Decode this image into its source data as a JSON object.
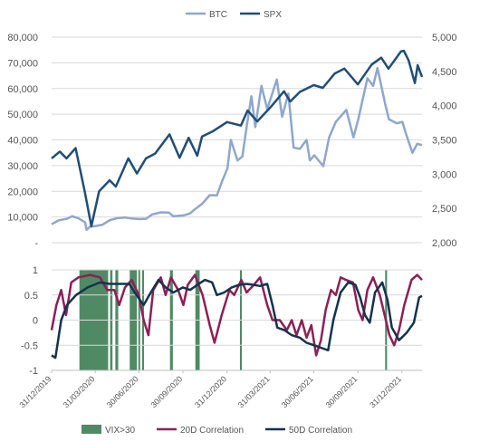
{
  "colors": {
    "btc": "#8ea7cf",
    "spx": "#1f4e79",
    "vix": "#4f8a64",
    "corr20": "#8e1f57",
    "corr50": "#13334f",
    "grid": "#d9d9d9",
    "text": "#555555"
  },
  "legend_top": [
    {
      "label": "BTC",
      "color_key": "btc"
    },
    {
      "label": "SPX",
      "color_key": "spx"
    }
  ],
  "legend_bottom": [
    {
      "label": "VIX>30",
      "color_key": "vix",
      "shape": "box"
    },
    {
      "label": "20D Correlation",
      "color_key": "corr20",
      "shape": "line"
    },
    {
      "label": "50D Correlation",
      "color_key": "corr50",
      "shape": "line"
    }
  ],
  "chart_data": [
    {
      "type": "line",
      "title": "",
      "x_range": [
        "2019-12-31",
        "2022-02-11"
      ],
      "y_left": {
        "label": "",
        "ylim": [
          0,
          80000
        ],
        "ticks": [
          "-",
          "10,000",
          "20,000",
          "30,000",
          "40,000",
          "50,000",
          "60,000",
          "70,000",
          "80,000"
        ]
      },
      "y_right": {
        "label": "",
        "ylim": [
          2000,
          5000
        ],
        "ticks": [
          "2,000",
          "2,500",
          "3,000",
          "3,500",
          "4,000",
          "4,500",
          "5,000"
        ]
      },
      "grid": "horizontal",
      "legend": "top-center",
      "series": [
        {
          "name": "BTC",
          "axis": "left",
          "points": [
            [
              "2019-12-31",
              7200
            ],
            [
              "2020-01-15",
              8700
            ],
            [
              "2020-02-01",
              9300
            ],
            [
              "2020-02-12",
              10300
            ],
            [
              "2020-02-25",
              9500
            ],
            [
              "2020-03-10",
              7900
            ],
            [
              "2020-03-13",
              5000
            ],
            [
              "2020-03-20",
              6200
            ],
            [
              "2020-04-01",
              6500
            ],
            [
              "2020-04-15",
              7000
            ],
            [
              "2020-05-01",
              8800
            ],
            [
              "2020-05-15",
              9500
            ],
            [
              "2020-06-01",
              9800
            ],
            [
              "2020-06-15",
              9400
            ],
            [
              "2020-07-01",
              9200
            ],
            [
              "2020-07-15",
              9300
            ],
            [
              "2020-07-28",
              11000
            ],
            [
              "2020-08-15",
              11800
            ],
            [
              "2020-09-01",
              11700
            ],
            [
              "2020-09-10",
              10300
            ],
            [
              "2020-10-01",
              10600
            ],
            [
              "2020-10-15",
              11400
            ],
            [
              "2020-10-25",
              13000
            ],
            [
              "2020-11-10",
              15300
            ],
            [
              "2020-11-25",
              18500
            ],
            [
              "2020-12-10",
              18400
            ],
            [
              "2020-12-20",
              23500
            ],
            [
              "2021-01-01",
              29000
            ],
            [
              "2021-01-08",
              40000
            ],
            [
              "2021-01-22",
              32000
            ],
            [
              "2021-02-01",
              33500
            ],
            [
              "2021-02-10",
              45000
            ],
            [
              "2021-02-20",
              57000
            ],
            [
              "2021-02-28",
              45000
            ],
            [
              "2021-03-13",
              61000
            ],
            [
              "2021-03-25",
              52000
            ],
            [
              "2021-04-14",
              63500
            ],
            [
              "2021-04-25",
              49000
            ],
            [
              "2021-05-08",
              58000
            ],
            [
              "2021-05-19",
              37000
            ],
            [
              "2021-06-01",
              36500
            ],
            [
              "2021-06-15",
              40000
            ],
            [
              "2021-06-22",
              32000
            ],
            [
              "2021-07-01",
              34000
            ],
            [
              "2021-07-20",
              29800
            ],
            [
              "2021-08-01",
              41000
            ],
            [
              "2021-08-15",
              47000
            ],
            [
              "2021-09-06",
              51700
            ],
            [
              "2021-09-21",
              41000
            ],
            [
              "2021-10-01",
              48000
            ],
            [
              "2021-10-20",
              64000
            ],
            [
              "2021-11-01",
              61000
            ],
            [
              "2021-11-10",
              68000
            ],
            [
              "2021-11-26",
              54000
            ],
            [
              "2021-12-04",
              48000
            ],
            [
              "2021-12-20",
              46500
            ],
            [
              "2022-01-01",
              47000
            ],
            [
              "2022-01-10",
              41500
            ],
            [
              "2022-01-22",
              35000
            ],
            [
              "2022-02-01",
              38500
            ],
            [
              "2022-02-11",
              38000
            ]
          ]
        },
        {
          "name": "SPX",
          "axis": "right",
          "points": [
            [
              "2019-12-31",
              3230
            ],
            [
              "2020-01-17",
              3330
            ],
            [
              "2020-01-31",
              3230
            ],
            [
              "2020-02-19",
              3380
            ],
            [
              "2020-03-09",
              2750
            ],
            [
              "2020-03-23",
              2240
            ],
            [
              "2020-04-08",
              2750
            ],
            [
              "2020-04-30",
              2910
            ],
            [
              "2020-05-13",
              2820
            ],
            [
              "2020-06-08",
              3230
            ],
            [
              "2020-06-26",
              3010
            ],
            [
              "2020-07-15",
              3230
            ],
            [
              "2020-08-03",
              3300
            ],
            [
              "2020-09-02",
              3580
            ],
            [
              "2020-09-23",
              3240
            ],
            [
              "2020-10-12",
              3530
            ],
            [
              "2020-10-30",
              3270
            ],
            [
              "2020-11-09",
              3550
            ],
            [
              "2020-11-30",
              3620
            ],
            [
              "2020-12-31",
              3760
            ],
            [
              "2021-01-29",
              3710
            ],
            [
              "2021-02-12",
              3930
            ],
            [
              "2021-03-04",
              3770
            ],
            [
              "2021-03-31",
              3970
            ],
            [
              "2021-04-29",
              4210
            ],
            [
              "2021-05-12",
              4060
            ],
            [
              "2021-06-01",
              4200
            ],
            [
              "2021-06-30",
              4300
            ],
            [
              "2021-07-19",
              4260
            ],
            [
              "2021-08-13",
              4470
            ],
            [
              "2021-09-02",
              4540
            ],
            [
              "2021-09-30",
              4310
            ],
            [
              "2021-10-29",
              4600
            ],
            [
              "2021-11-18",
              4700
            ],
            [
              "2021-11-30",
              4570
            ],
            [
              "2021-12-03",
              4540
            ],
            [
              "2021-12-29",
              4790
            ],
            [
              "2022-01-04",
              4800
            ],
            [
              "2022-01-14",
              4660
            ],
            [
              "2022-01-27",
              4330
            ],
            [
              "2022-02-02",
              4590
            ],
            [
              "2022-02-11",
              4420
            ]
          ]
        }
      ]
    },
    {
      "type": "line",
      "title": "",
      "x_range": [
        "2019-12-31",
        "2022-02-11"
      ],
      "x_ticks": [
        "31/12/2019",
        "31/03/2020",
        "30/06/2020",
        "30/09/2020",
        "31/12/2020",
        "31/03/2021",
        "30/06/2021",
        "30/09/2021",
        "31/12/2021"
      ],
      "y_left": {
        "label": "",
        "ylim": [
          -1,
          1
        ],
        "ticks": [
          "-1",
          "-0.5",
          "0",
          "0.5",
          "1"
        ]
      },
      "legend": "bottom",
      "vix_periods": [
        [
          "2020-02-27",
          "2020-04-27"
        ],
        [
          "2020-05-01",
          "2020-05-06"
        ],
        [
          "2020-05-12",
          "2020-05-18"
        ],
        [
          "2020-06-11",
          "2020-06-26"
        ],
        [
          "2020-06-29",
          "2020-07-01"
        ],
        [
          "2020-07-07",
          "2020-07-09"
        ],
        [
          "2020-09-03",
          "2020-09-09"
        ],
        [
          "2020-10-26",
          "2020-11-04"
        ],
        [
          "2021-01-27",
          "2021-01-31"
        ],
        [
          "2021-11-26",
          "2021-11-30"
        ]
      ],
      "series": [
        {
          "name": "20D Correlation",
          "points": [
            [
              "2019-12-31",
              -0.2
            ],
            [
              "2020-01-10",
              0.3
            ],
            [
              "2020-01-20",
              0.6
            ],
            [
              "2020-01-30",
              0.1
            ],
            [
              "2020-02-10",
              0.75
            ],
            [
              "2020-02-25",
              0.85
            ],
            [
              "2020-03-20",
              0.9
            ],
            [
              "2020-04-10",
              0.85
            ],
            [
              "2020-04-25",
              0.6
            ],
            [
              "2020-05-10",
              0.6
            ],
            [
              "2020-05-20",
              0.3
            ],
            [
              "2020-06-01",
              0.65
            ],
            [
              "2020-06-15",
              0.8
            ],
            [
              "2020-06-30",
              0.5
            ],
            [
              "2020-07-10",
              0.0
            ],
            [
              "2020-07-20",
              -0.3
            ],
            [
              "2020-07-30",
              0.6
            ],
            [
              "2020-08-15",
              0.85
            ],
            [
              "2020-08-25",
              0.5
            ],
            [
              "2020-09-05",
              0.85
            ],
            [
              "2020-09-20",
              0.6
            ],
            [
              "2020-10-01",
              0.3
            ],
            [
              "2020-10-10",
              0.7
            ],
            [
              "2020-10-25",
              0.9
            ],
            [
              "2020-11-10",
              0.5
            ],
            [
              "2020-11-25",
              -0.1
            ],
            [
              "2020-12-05",
              -0.45
            ],
            [
              "2020-12-20",
              0.1
            ],
            [
              "2021-01-05",
              0.6
            ],
            [
              "2021-01-15",
              0.5
            ],
            [
              "2021-01-30",
              0.8
            ],
            [
              "2021-02-10",
              0.55
            ],
            [
              "2021-02-25",
              0.7
            ],
            [
              "2021-03-10",
              0.85
            ],
            [
              "2021-03-25",
              0.3
            ],
            [
              "2021-04-05",
              0.0
            ],
            [
              "2021-04-20",
              0.0
            ],
            [
              "2021-05-05",
              -0.2
            ],
            [
              "2021-05-15",
              0.0
            ],
            [
              "2021-05-25",
              -0.3
            ],
            [
              "2021-06-05",
              0.0
            ],
            [
              "2021-06-15",
              -0.35
            ],
            [
              "2021-06-25",
              -0.1
            ],
            [
              "2021-07-05",
              -0.7
            ],
            [
              "2021-07-15",
              -0.4
            ],
            [
              "2021-07-25",
              0.2
            ],
            [
              "2021-08-05",
              0.6
            ],
            [
              "2021-08-15",
              0.5
            ],
            [
              "2021-08-25",
              0.85
            ],
            [
              "2021-09-05",
              0.8
            ],
            [
              "2021-09-20",
              0.75
            ],
            [
              "2021-10-01",
              0.2
            ],
            [
              "2021-10-10",
              0.0
            ],
            [
              "2021-10-20",
              0.6
            ],
            [
              "2021-11-01",
              0.85
            ],
            [
              "2021-11-15",
              0.5
            ],
            [
              "2021-11-25",
              0.1
            ],
            [
              "2021-12-05",
              -0.3
            ],
            [
              "2021-12-15",
              -0.5
            ],
            [
              "2021-12-25",
              -0.2
            ],
            [
              "2022-01-05",
              0.3
            ],
            [
              "2022-01-20",
              0.8
            ],
            [
              "2022-02-01",
              0.9
            ],
            [
              "2022-02-11",
              0.8
            ]
          ]
        },
        {
          "name": "50D Correlation",
          "points": [
            [
              "2019-12-31",
              -0.7
            ],
            [
              "2020-01-08",
              -0.75
            ],
            [
              "2020-01-20",
              0.0
            ],
            [
              "2020-02-01",
              0.3
            ],
            [
              "2020-02-20",
              0.5
            ],
            [
              "2020-03-15",
              0.65
            ],
            [
              "2020-04-10",
              0.75
            ],
            [
              "2020-04-30",
              0.72
            ],
            [
              "2020-05-20",
              0.72
            ],
            [
              "2020-06-10",
              0.72
            ],
            [
              "2020-06-25",
              0.5
            ],
            [
              "2020-07-10",
              0.3
            ],
            [
              "2020-07-25",
              0.55
            ],
            [
              "2020-08-10",
              0.8
            ],
            [
              "2020-08-25",
              0.65
            ],
            [
              "2020-09-10",
              0.55
            ],
            [
              "2020-09-30",
              0.65
            ],
            [
              "2020-10-15",
              0.6
            ],
            [
              "2020-10-30",
              0.7
            ],
            [
              "2020-11-15",
              0.8
            ],
            [
              "2020-11-30",
              0.75
            ],
            [
              "2020-12-10",
              0.5
            ],
            [
              "2020-12-25",
              0.55
            ],
            [
              "2021-01-10",
              0.65
            ],
            [
              "2021-01-25",
              0.7
            ],
            [
              "2021-02-10",
              0.72
            ],
            [
              "2021-02-25",
              0.7
            ],
            [
              "2021-03-10",
              0.68
            ],
            [
              "2021-03-25",
              0.72
            ],
            [
              "2021-04-05",
              0.3
            ],
            [
              "2021-04-15",
              -0.15
            ],
            [
              "2021-04-30",
              -0.2
            ],
            [
              "2021-05-15",
              -0.3
            ],
            [
              "2021-06-01",
              -0.35
            ],
            [
              "2021-06-15",
              -0.45
            ],
            [
              "2021-07-01",
              -0.5
            ],
            [
              "2021-07-15",
              -0.55
            ],
            [
              "2021-07-30",
              -0.6
            ],
            [
              "2021-08-10",
              0.0
            ],
            [
              "2021-08-25",
              0.55
            ],
            [
              "2021-09-10",
              0.75
            ],
            [
              "2021-09-25",
              0.7
            ],
            [
              "2021-10-05",
              0.45
            ],
            [
              "2021-10-15",
              0.1
            ],
            [
              "2021-10-25",
              -0.05
            ],
            [
              "2021-11-05",
              0.55
            ],
            [
              "2021-11-20",
              0.75
            ],
            [
              "2021-12-01",
              0.4
            ],
            [
              "2021-12-10",
              -0.15
            ],
            [
              "2021-12-25",
              -0.4
            ],
            [
              "2022-01-10",
              -0.25
            ],
            [
              "2022-01-25",
              -0.05
            ],
            [
              "2022-02-05",
              0.45
            ],
            [
              "2022-02-11",
              0.48
            ]
          ]
        }
      ]
    }
  ]
}
